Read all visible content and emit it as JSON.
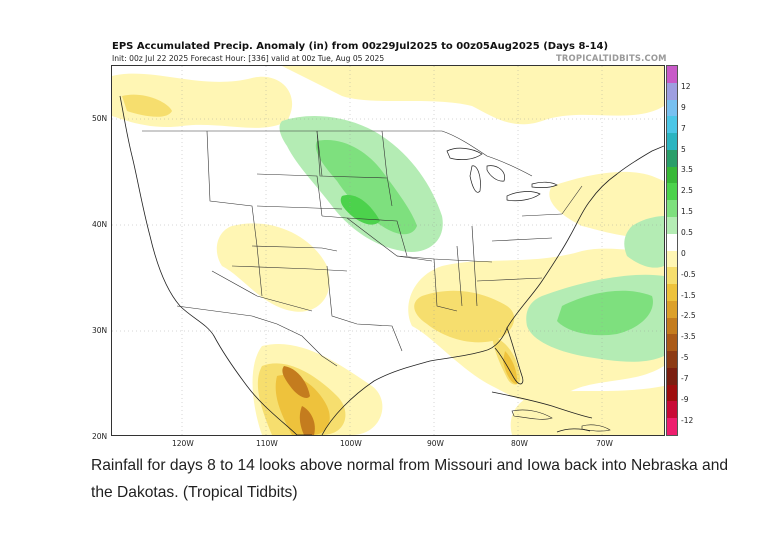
{
  "map": {
    "title": "EPS Accumulated Precip. Anomaly (in) from 00z29Jul2025 to 00z05Aug2025 (Days 8-14)",
    "subtitle": "Init: 00z Jul 22 2025   Forecast Hour: [336]   valid at 00z Tue, Aug 05 2025",
    "credit": "TROPICALTIDBITS.COM",
    "lat_labels": [
      "50N",
      "40N",
      "30N",
      "20N"
    ],
    "lon_labels": [
      "120W",
      "110W",
      "100W",
      "90W",
      "80W",
      "70W"
    ],
    "colorbar": {
      "labels": [
        "12",
        "9",
        "7",
        "5",
        "3.5",
        "2.5",
        "1.5",
        "0.5",
        "0",
        "-0.5",
        "-1.5",
        "-2.5",
        "-3.5",
        "-5",
        "-7",
        "-9",
        "-12"
      ],
      "colors": [
        "#c85ac8",
        "#9e9ee0",
        "#78c0f0",
        "#4cc6e6",
        "#2cb4c0",
        "#2a9e6a",
        "#38b838",
        "#4cd24c",
        "#7ee07e",
        "#b4ecb4",
        "#ffffff",
        "#fff6b4",
        "#f6de6e",
        "#eec23c",
        "#dca02a",
        "#c47c1e",
        "#aa5a18",
        "#8c3a14",
        "#7a1e10",
        "#9e0e0e",
        "#c80a36",
        "#ee1e6e"
      ]
    }
  },
  "caption": "Rainfall for days 8 to 14 looks above normal from Missouri and Iowa back into Nebraska and the Dakotas. (Tropical Tidbits)"
}
